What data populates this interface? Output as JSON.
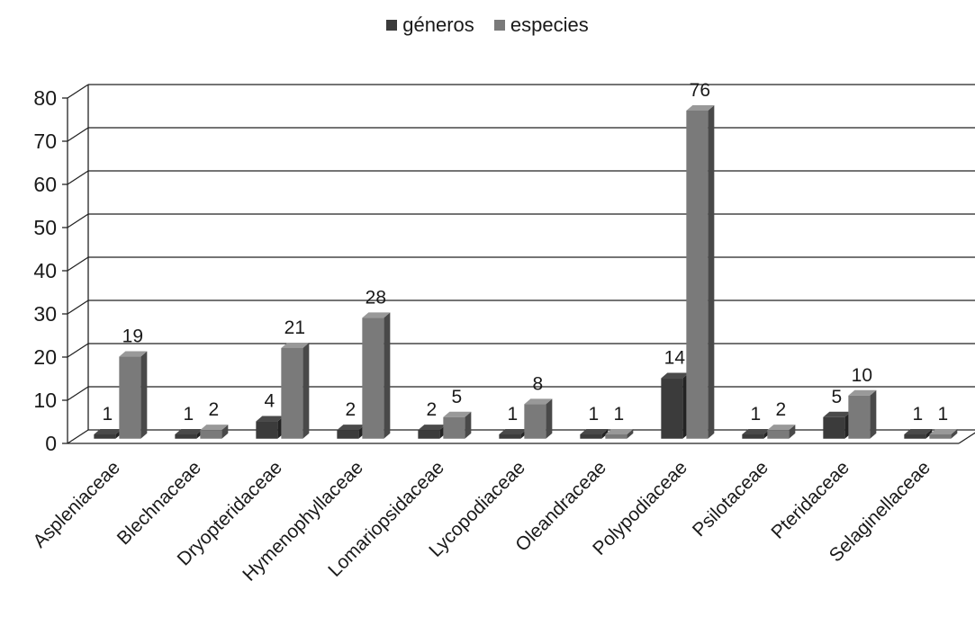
{
  "chart_data": {
    "type": "bar",
    "categories": [
      "Aspleniaceae",
      "Blechnaceae",
      "Dryopteridaceae",
      "Hymenophyllaceae",
      "Lomariopsidaceae",
      "Lycopodiaceae",
      "Oleandraceae",
      "Polypodiaceae",
      "Psilotaceae",
      "Pteridaceae",
      "Selaginellaceae"
    ],
    "series": [
      {
        "name": "géneros",
        "values": [
          1,
          1,
          4,
          2,
          2,
          1,
          1,
          14,
          1,
          5,
          1
        ],
        "color": "#3b3b3b"
      },
      {
        "name": "especies",
        "values": [
          19,
          2,
          21,
          28,
          5,
          8,
          1,
          76,
          2,
          10,
          1
        ],
        "color": "#7a7a7a"
      }
    ],
    "y_ticks": [
      0,
      10,
      20,
      30,
      40,
      50,
      60,
      70,
      80
    ],
    "ylim": [
      0,
      80
    ],
    "grid": true,
    "legend_position": "top-center",
    "style": "3d-column"
  }
}
